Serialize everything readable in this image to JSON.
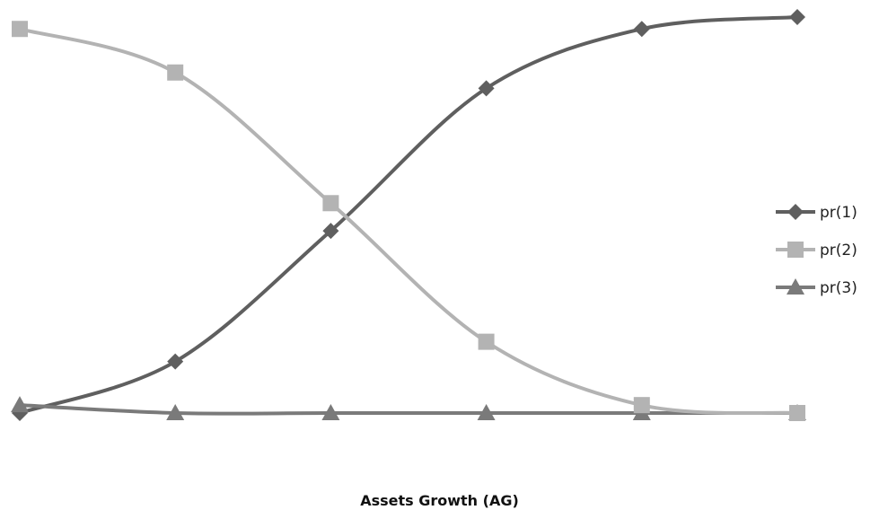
{
  "chart_data": {
    "type": "line",
    "smooth": true,
    "xlabel": "Assets Growth  (AG)",
    "ylabel": "",
    "title": "",
    "x": [
      1,
      2,
      3,
      4,
      5,
      6
    ],
    "ylim": [
      0,
      1
    ],
    "grid": false,
    "legend_position": "right",
    "series": [
      {
        "name": "pr(1)",
        "marker": "diamond",
        "color": "#5f5f5f",
        "values": [
          0.0,
          0.13,
          0.46,
          0.82,
          0.97,
          1.0
        ]
      },
      {
        "name": "pr(2)",
        "marker": "square",
        "color": "#b3b3b3",
        "values": [
          0.97,
          0.86,
          0.53,
          0.18,
          0.02,
          0.0
        ]
      },
      {
        "name": "pr(3)",
        "marker": "triangle",
        "color": "#7a7a7a",
        "values": [
          0.02,
          0.0,
          0.0,
          0.0,
          0.0,
          0.0
        ]
      }
    ]
  }
}
